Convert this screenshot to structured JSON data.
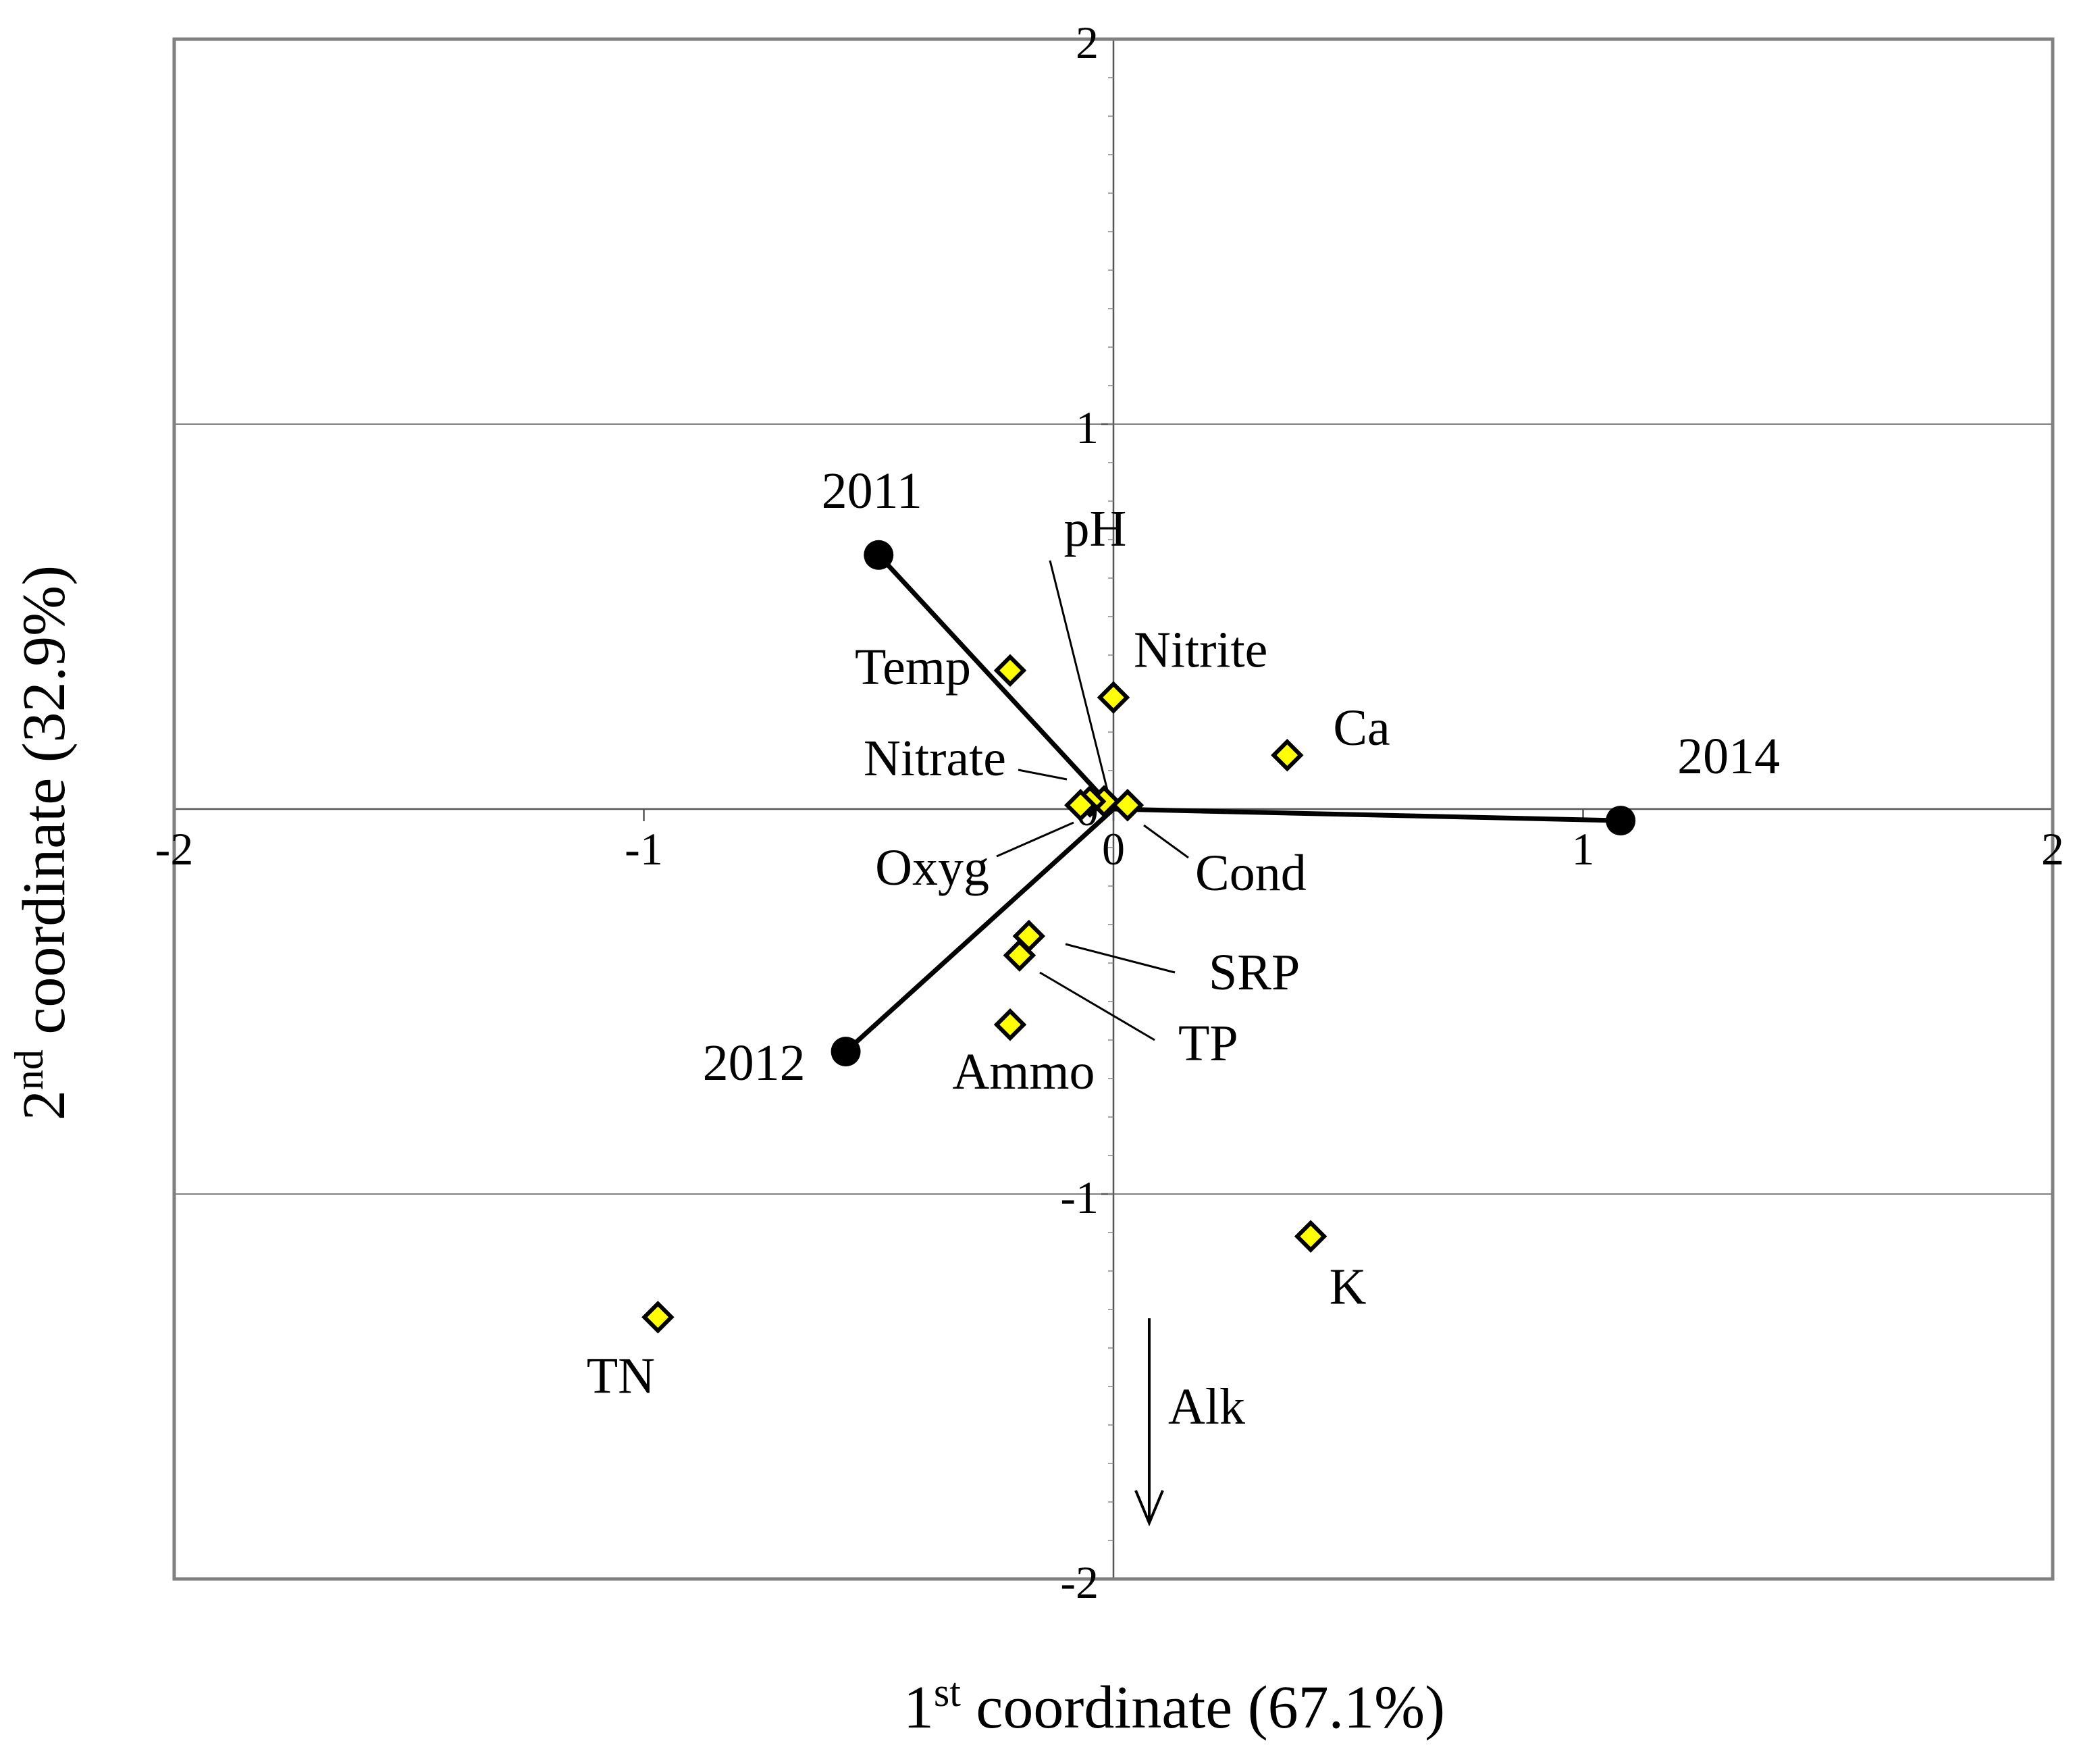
{
  "chart_data": {
    "type": "scatter",
    "xlim": [
      -2,
      2
    ],
    "ylim": [
      -2,
      2
    ],
    "x_ticks": [
      "-2",
      "-1",
      "0",
      "1",
      "2"
    ],
    "y_ticks": [
      "2",
      "1",
      "0",
      "-1",
      "-2"
    ],
    "grid": true,
    "xlabel": {
      "main": "1",
      "sup": "st",
      "rest": " coordinate (67.1%)"
    },
    "ylabel": {
      "main": "2",
      "sup": "nd",
      "rest": " coordinate (32.9%)"
    },
    "colors": {
      "site_marker": "#000000",
      "variable_marker_fill": "#ffff00",
      "variable_marker_stroke": "#000000",
      "grid": "#808080"
    },
    "site_points": [
      {
        "label": "2011",
        "x": -0.5,
        "y": 0.66
      },
      {
        "label": "2012",
        "x": -0.57,
        "y": -0.63
      },
      {
        "label": "2014",
        "x": 1.08,
        "y": -0.03
      }
    ],
    "variable_points": [
      {
        "label": "Temp",
        "x": -0.22,
        "y": 0.36
      },
      {
        "label": "Nitrite",
        "x": 0.0,
        "y": 0.29
      },
      {
        "label": "Ca",
        "x": 0.37,
        "y": 0.14
      },
      {
        "label": "pH",
        "x": -0.02,
        "y": 0.02
      },
      {
        "label": "Nitrate",
        "x": -0.05,
        "y": 0.02
      },
      {
        "label": "Oxyg",
        "x": -0.07,
        "y": 0.01
      },
      {
        "label": "Cond",
        "x": 0.03,
        "y": 0.01
      },
      {
        "label": "SRP",
        "x": -0.18,
        "y": -0.33
      },
      {
        "label": "TP",
        "x": -0.2,
        "y": -0.38
      },
      {
        "label": "Ammo",
        "x": -0.22,
        "y": -0.56
      },
      {
        "label": "K",
        "x": 0.42,
        "y": -1.11
      },
      {
        "label": "TN",
        "x": -0.97,
        "y": -1.32
      }
    ],
    "annotations": [
      {
        "label": "Alk",
        "direction": "down"
      }
    ]
  }
}
